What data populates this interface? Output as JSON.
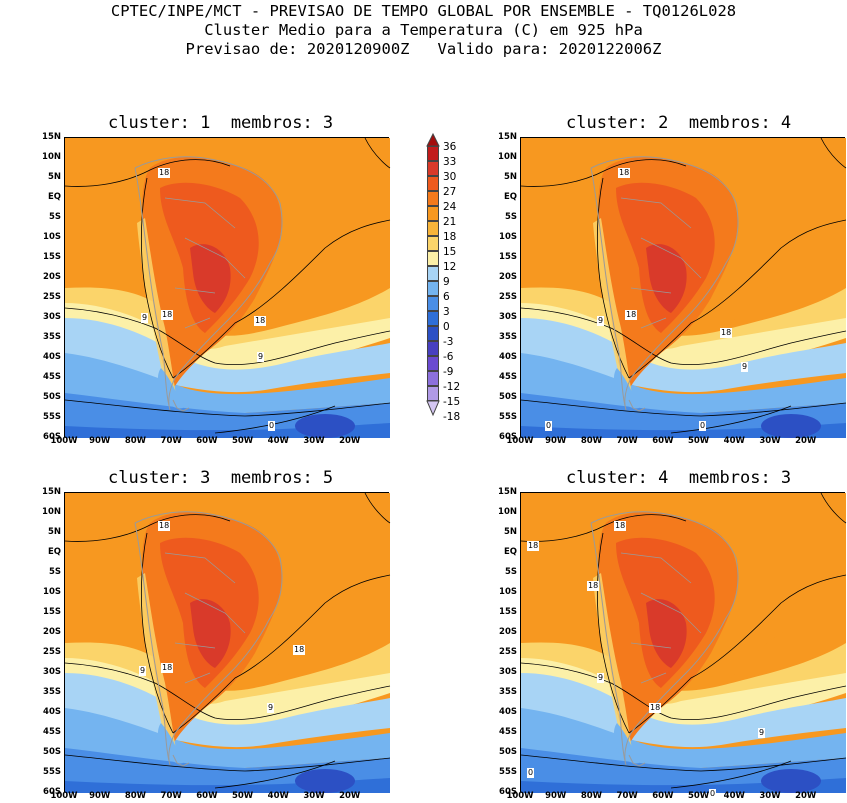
{
  "header": {
    "line1": "CPTEC/INPE/MCT - PREVISAO DE TEMPO GLOBAL POR ENSEMBLE - TQ0126L028",
    "line2": "Cluster Medio para a Temperatura (C) em 925 hPa",
    "line3": "Previsao de: 2020120900Z   Valido para: 2020122006Z"
  },
  "panels": [
    {
      "title": "cluster: 1  membros: 3"
    },
    {
      "title": "cluster: 2  membros: 4"
    },
    {
      "title": "cluster: 3  membros: 5"
    },
    {
      "title": "cluster: 4  membros: 3"
    }
  ],
  "lat_labels": [
    "15N",
    "10N",
    "5N",
    "EQ",
    "5S",
    "10S",
    "15S",
    "20S",
    "25S",
    "30S",
    "35S",
    "40S",
    "45S",
    "50S",
    "55S",
    "60S"
  ],
  "lon_labels": [
    "100W",
    "90W",
    "80W",
    "70W",
    "60W",
    "50W",
    "40W",
    "30W",
    "20W"
  ],
  "colorbar": {
    "ticks": [
      "36",
      "33",
      "30",
      "27",
      "24",
      "21",
      "18",
      "15",
      "12",
      "9",
      "6",
      "3",
      "0",
      "-3",
      "-6",
      "-9",
      "-12",
      "-15",
      "-18"
    ],
    "colors": [
      "#a30d0d",
      "#c11b1b",
      "#d93a2a",
      "#ee5a1e",
      "#f47a1c",
      "#f79820",
      "#f7b43a",
      "#fbd46a",
      "#fcf0a8",
      "#a8d4f5",
      "#74b4f0",
      "#4a8ee6",
      "#2f6fd8",
      "#2c50c4",
      "#4840c0",
      "#6a4ad0",
      "#8c70dc",
      "#b09ae6",
      "#d4c6f2"
    ]
  },
  "contour_labels": {
    "p1": [
      "18",
      "18",
      "9",
      "18",
      "9",
      "0"
    ],
    "p2": [
      "18",
      "18",
      "9",
      "18",
      "9",
      "0",
      "0"
    ],
    "p3": [
      "18",
      "18",
      "9",
      "18",
      "9"
    ],
    "p4": [
      "18",
      "18",
      "18",
      "9",
      "18",
      "9",
      "0",
      "0"
    ]
  }
}
